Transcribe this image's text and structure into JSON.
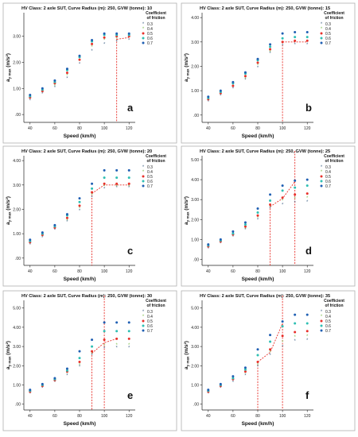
{
  "legend_title": [
    "Coefficient",
    "of friction"
  ],
  "legend_entries": [
    "0.3",
    "0.4",
    "0.5",
    "0.6",
    "0.7"
  ],
  "colors": {
    "0.3": "#4a6a8c",
    "0.4": "#7fbf4f",
    "0.5": "#e8302a",
    "0.6": "#2fbfb3",
    "0.7": "#1f5fb3",
    "threshold": "#e8302a",
    "axis": "#222222",
    "frame": "#b0b0b0"
  },
  "chart_data": [
    {
      "type": "scatter",
      "title": "HV Class: 2 axle SUT, Curve Radius (m): 250, GVW (tonne): 10",
      "panel_label": "a",
      "xlabel": "Speed (km/h)",
      "ylabel": "a",
      "ylabel_sub": "y max",
      "ylabel_unit": "(m/s²)",
      "x_ticks": [
        40,
        60,
        80,
        100,
        120
      ],
      "y_ticks": [
        ".00",
        "1.00",
        "2.00",
        "3.00"
      ],
      "xlim": [
        35,
        125
      ],
      "ylim": [
        -0.3,
        3.9
      ],
      "x": [
        40,
        50,
        60,
        70,
        80,
        90,
        100,
        110,
        120
      ],
      "series": [
        {
          "name": "0.3",
          "values": [
            0.55,
            0.8,
            1.05,
            1.4,
            1.95,
            2.45,
            2.7,
            2.8,
            2.85
          ]
        },
        {
          "name": "0.4",
          "values": [
            0.6,
            0.85,
            1.1,
            1.5,
            2.05,
            2.6,
            2.85,
            2.9,
            2.95
          ]
        },
        {
          "name": "0.5",
          "values": [
            0.65,
            0.9,
            1.2,
            1.6,
            2.1,
            2.7,
            2.95,
            3.0,
            3.0
          ]
        },
        {
          "name": "0.6",
          "values": [
            0.7,
            0.95,
            1.25,
            1.7,
            2.2,
            2.8,
            3.05,
            3.05,
            3.05
          ]
        },
        {
          "name": "0.7",
          "values": [
            0.75,
            1.0,
            1.3,
            1.75,
            2.25,
            2.85,
            3.1,
            3.1,
            3.1
          ]
        }
      ],
      "threshold": {
        "x": 110,
        "y": 2.9,
        "fit": [
          [
            110,
            2.88
          ],
          [
            120,
            2.95
          ]
        ]
      }
    },
    {
      "type": "scatter",
      "title": "HV Class: 2 axle SUT, Curve Radius (m): 250, GVW (tonne): 15",
      "panel_label": "b",
      "xlabel": "Speed (km/h)",
      "ylabel": "a",
      "ylabel_sub": "y max",
      "ylabel_unit": "(m/s²)",
      "x_ticks": [
        40,
        60,
        80,
        100,
        120
      ],
      "y_ticks": [
        ".00",
        "1.00",
        "2.00",
        "3.00",
        "4.00"
      ],
      "xlim": [
        35,
        125
      ],
      "ylim": [
        -0.3,
        4.2
      ],
      "x": [
        40,
        50,
        60,
        70,
        80,
        90,
        100,
        110,
        120
      ],
      "series": [
        {
          "name": "0.3",
          "values": [
            0.55,
            0.8,
            1.1,
            1.45,
            1.95,
            2.55,
            2.85,
            2.9,
            2.9
          ]
        },
        {
          "name": "0.4",
          "values": [
            0.6,
            0.85,
            1.15,
            1.5,
            2.05,
            2.6,
            2.95,
            3.0,
            3.0
          ]
        },
        {
          "name": "0.5",
          "values": [
            0.65,
            0.9,
            1.2,
            1.6,
            2.15,
            2.7,
            3.0,
            3.05,
            3.05
          ]
        },
        {
          "name": "0.6",
          "values": [
            0.7,
            0.95,
            1.3,
            1.7,
            2.25,
            2.8,
            3.15,
            3.2,
            3.2
          ]
        },
        {
          "name": "0.7",
          "values": [
            0.75,
            1.0,
            1.35,
            1.75,
            2.3,
            2.9,
            3.35,
            3.4,
            3.4
          ]
        }
      ],
      "threshold": {
        "x": 100,
        "y": 3.0,
        "fit": [
          [
            100,
            3.0
          ],
          [
            120,
            3.0
          ]
        ]
      }
    },
    {
      "type": "scatter",
      "title": "HV Class: 2 axle SUT, Curve Radius (m): 250, GVW (tonne): 20",
      "panel_label": "c",
      "xlabel": "Speed (km/h)",
      "ylabel": "a",
      "ylabel_sub": "y max",
      "ylabel_unit": "(m/s²)",
      "x_ticks": [
        40,
        60,
        80,
        100,
        120
      ],
      "y_ticks": [
        ".00",
        "1.00",
        "2.00",
        "3.00",
        "4.00"
      ],
      "xlim": [
        35,
        125
      ],
      "ylim": [
        -0.3,
        4.2
      ],
      "x": [
        40,
        50,
        60,
        70,
        80,
        90,
        100,
        110,
        120
      ],
      "series": [
        {
          "name": "0.3",
          "values": [
            0.55,
            0.85,
            1.15,
            1.5,
            1.95,
            2.5,
            2.85,
            2.9,
            2.9
          ]
        },
        {
          "name": "0.4",
          "values": [
            0.6,
            0.9,
            1.2,
            1.55,
            2.05,
            2.6,
            2.95,
            2.95,
            2.95
          ]
        },
        {
          "name": "0.5",
          "values": [
            0.65,
            0.95,
            1.25,
            1.65,
            2.15,
            2.7,
            3.05,
            3.05,
            3.05
          ]
        },
        {
          "name": "0.6",
          "values": [
            0.7,
            1.0,
            1.3,
            1.75,
            2.3,
            2.85,
            3.3,
            3.3,
            3.3
          ]
        },
        {
          "name": "0.7",
          "values": [
            0.75,
            1.05,
            1.35,
            1.8,
            2.45,
            3.05,
            3.6,
            3.6,
            3.6
          ]
        }
      ],
      "threshold": {
        "x": 90,
        "y": 2.7,
        "fit": [
          [
            90,
            2.65
          ],
          [
            100,
            3.0
          ],
          [
            120,
            3.0
          ]
        ]
      }
    },
    {
      "type": "scatter",
      "title": "HV Class: 2 axle SUT, Curve Radius (m): 250, GVW (tonne): 25",
      "panel_label": "d",
      "xlabel": "Speed (km/h)",
      "ylabel": "a",
      "ylabel_sub": "y max",
      "ylabel_unit": "(m/s²)",
      "x_ticks": [
        40,
        60,
        80,
        100,
        120
      ],
      "y_ticks": [
        ".00",
        "1.00",
        "2.00",
        "3.00",
        "4.00",
        "5.00"
      ],
      "xlim": [
        35,
        125
      ],
      "ylim": [
        -0.3,
        5.2
      ],
      "x": [
        40,
        50,
        60,
        70,
        80,
        90,
        100,
        110,
        120
      ],
      "series": [
        {
          "name": "0.3",
          "values": [
            0.55,
            0.8,
            1.15,
            1.5,
            2.0,
            2.55,
            2.75,
            2.85,
            2.9
          ]
        },
        {
          "name": "0.4",
          "values": [
            0.6,
            0.85,
            1.2,
            1.55,
            2.1,
            2.65,
            2.95,
            3.05,
            3.1
          ]
        },
        {
          "name": "0.5",
          "values": [
            0.65,
            0.9,
            1.25,
            1.65,
            2.2,
            2.75,
            3.1,
            3.25,
            3.3
          ]
        },
        {
          "name": "0.6",
          "values": [
            0.7,
            0.95,
            1.3,
            1.75,
            2.35,
            2.95,
            3.45,
            3.6,
            3.7
          ]
        },
        {
          "name": "0.7",
          "values": [
            0.75,
            1.0,
            1.4,
            1.85,
            2.55,
            3.25,
            3.7,
            3.95,
            4.0
          ]
        }
      ],
      "threshold": {
        "x": 90,
        "y": 2.7,
        "fit": [
          [
            90,
            2.65
          ],
          [
            100,
            3.05
          ],
          [
            110,
            3.9
          ]
        ],
        "vline2_x": 110
      }
    },
    {
      "type": "scatter",
      "title": "HV Class: 2 axle SUT, Curve Radius (m): 250, GVW (tonne): 30",
      "panel_label": "e",
      "xlabel": "Speed (km/h)",
      "ylabel": "a",
      "ylabel_sub": "y max",
      "ylabel_unit": "(m/s²)",
      "x_ticks": [
        40,
        60,
        80,
        100,
        120
      ],
      "y_ticks": [
        ".00",
        "1.00",
        "2.00",
        "3.00",
        "4.00",
        "5.00"
      ],
      "xlim": [
        35,
        125
      ],
      "ylim": [
        -0.3,
        5.4
      ],
      "x": [
        40,
        50,
        60,
        70,
        80,
        90,
        100,
        110,
        120
      ],
      "series": [
        {
          "name": "0.3",
          "values": [
            0.55,
            0.85,
            1.15,
            1.5,
            1.95,
            2.55,
            2.9,
            2.95,
            2.95
          ]
        },
        {
          "name": "0.4",
          "values": [
            0.6,
            0.9,
            1.2,
            1.6,
            2.05,
            2.65,
            3.05,
            3.1,
            3.1
          ]
        },
        {
          "name": "0.5",
          "values": [
            0.65,
            0.95,
            1.25,
            1.7,
            2.2,
            2.75,
            3.35,
            3.4,
            3.4
          ]
        },
        {
          "name": "0.6",
          "values": [
            0.7,
            1.0,
            1.3,
            1.75,
            2.4,
            3.0,
            3.8,
            3.8,
            3.8
          ]
        },
        {
          "name": "0.7",
          "values": [
            0.75,
            1.05,
            1.35,
            1.85,
            2.75,
            3.35,
            4.25,
            4.25,
            4.25
          ]
        }
      ],
      "threshold": {
        "x": 90,
        "y": 2.7,
        "fit": [
          [
            90,
            2.65
          ],
          [
            100,
            3.2
          ],
          [
            110,
            3.4
          ]
        ],
        "vline2_x": 100
      }
    },
    {
      "type": "scatter",
      "title": "HV Class: 2 axle SUT, Curve Radius (m): 250, GVW (tonne): 35",
      "panel_label": "f",
      "xlabel": "Speed (km/h)",
      "ylabel": "a",
      "ylabel_sub": "y max",
      "ylabel_unit": "(m/s²)",
      "x_ticks": [
        40,
        60,
        80,
        100,
        120
      ],
      "y_ticks": [
        ".00",
        "1.00",
        "2.00",
        "3.00",
        "4.00",
        "5.00"
      ],
      "xlim": [
        35,
        125
      ],
      "ylim": [
        -0.3,
        5.4
      ],
      "x": [
        40,
        50,
        60,
        70,
        80,
        90,
        100,
        110,
        120
      ],
      "series": [
        {
          "name": "0.3",
          "values": [
            0.55,
            0.85,
            1.15,
            1.5,
            1.95,
            2.55,
            3.0,
            3.3,
            3.35
          ]
        },
        {
          "name": "0.4",
          "values": [
            0.6,
            0.9,
            1.25,
            1.6,
            2.05,
            2.7,
            3.25,
            3.5,
            3.55
          ]
        },
        {
          "name": "0.5",
          "values": [
            0.65,
            0.95,
            1.3,
            1.7,
            2.2,
            2.85,
            3.55,
            3.75,
            3.8
          ]
        },
        {
          "name": "0.6",
          "values": [
            0.7,
            1.0,
            1.35,
            1.8,
            2.55,
            3.25,
            4.05,
            4.2,
            4.2
          ]
        },
        {
          "name": "0.7",
          "values": [
            0.75,
            1.05,
            1.45,
            1.9,
            2.85,
            3.6,
            4.3,
            4.65,
            4.65
          ]
        }
      ],
      "threshold": {
        "x": 80,
        "y": 2.2,
        "fit": [
          [
            80,
            2.2
          ],
          [
            90,
            2.7
          ],
          [
            100,
            4.2
          ]
        ],
        "vline2_x": 100
      }
    }
  ]
}
